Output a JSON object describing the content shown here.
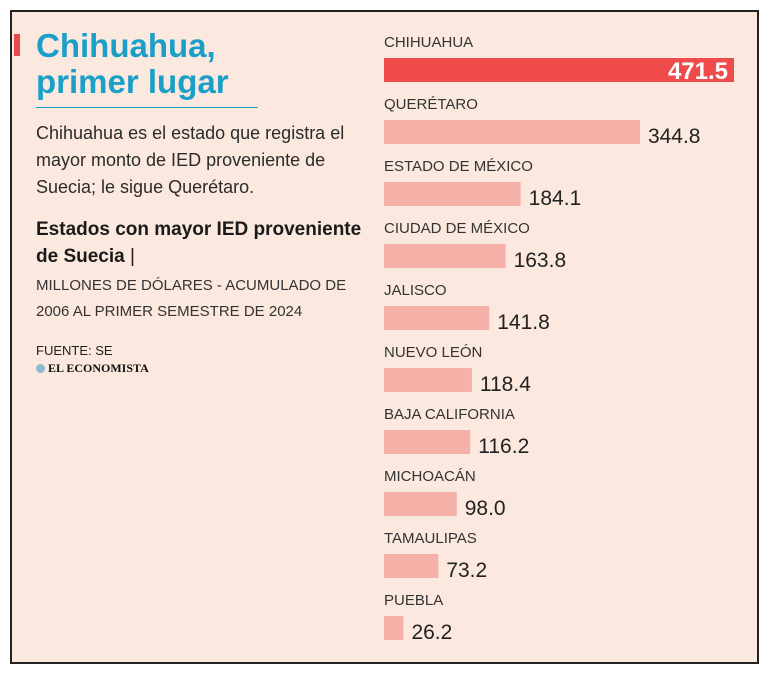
{
  "header": {
    "title_line1": "Chihuahua,",
    "title_line2": "primer lugar",
    "description": "Chihuahua es el estado que registra el mayor monto de IED proveniente de Suecia; le sigue Querétaro.",
    "subtitle_bold": "Estados con mayor IED proveniente de Suecia",
    "subtitle_sep": " |",
    "units": "MILLONES DE DÓLARES - ACUMULADO DE 2006 AL PRIMER SEMESTRE DE 2024",
    "source": "FUENTE: SE",
    "brand": "EL ECONOMISTA"
  },
  "colors": {
    "highlight": "#ef4b4b",
    "bar": "#f5b1a8",
    "title": "#1aa0c8",
    "background": "#fbe8de"
  },
  "chart_data": {
    "type": "bar",
    "orientation": "horizontal",
    "title": "Estados con mayor IED proveniente de Suecia",
    "units": "Millones de dólares",
    "categories": [
      "CHIHUAHUA",
      "QUERÉTARO",
      "ESTADO DE MÉXICO",
      "CIUDAD DE MÉXICO",
      "JALISCO",
      "NUEVO LEÓN",
      "BAJA CALIFORNIA",
      "MICHOACÁN",
      "TAMAULIPAS",
      "PUEBLA"
    ],
    "values": [
      471.5,
      344.8,
      184.1,
      163.8,
      141.8,
      118.4,
      116.2,
      98.0,
      73.2,
      26.2
    ],
    "value_labels": [
      "471.5",
      "344.8",
      "184.1",
      "163.8",
      "141.8",
      "118.4",
      "116.2",
      "98.0",
      "73.2",
      "26.2"
    ],
    "highlight_index": 0,
    "xlim": [
      0,
      471.5
    ]
  }
}
